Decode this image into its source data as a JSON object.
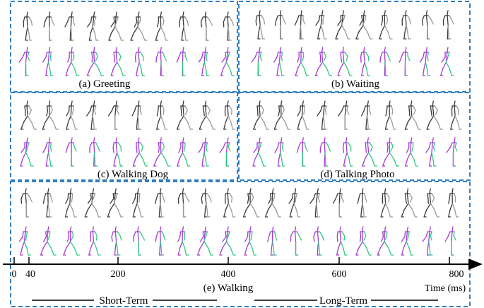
{
  "panels": [
    {
      "id": "a",
      "caption": "(a) Greeting"
    },
    {
      "id": "b",
      "caption": "(b) Waiting"
    },
    {
      "id": "c",
      "caption": "(c) Walking Dog"
    },
    {
      "id": "d",
      "caption": "(d) Talking Photo"
    },
    {
      "id": "e",
      "caption": "(e) Walking"
    }
  ],
  "timeline": {
    "ticks": [
      "0",
      "40",
      "200",
      "400",
      "600",
      "800"
    ],
    "unit_label": "Time (ms)",
    "short_term_label": "Short-Term",
    "long_term_label": "Long-Term"
  },
  "colors": {
    "frame": "#2f7fc2",
    "ground_truth": "#4a4a4a",
    "prediction_left": "#a23bd6",
    "prediction_right": "#2fc882"
  }
}
